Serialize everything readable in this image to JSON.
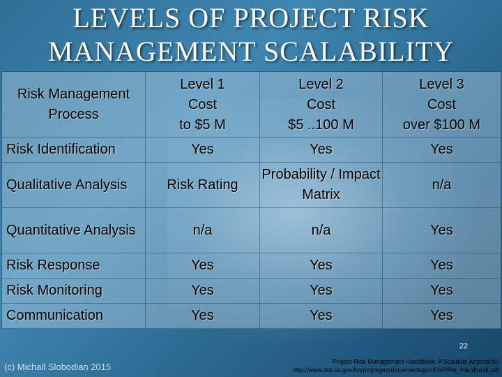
{
  "title": {
    "line1": "LEVELS OF PROJECT RISK",
    "line2": "MANAGEMENT SCALABILITY"
  },
  "table": {
    "header": {
      "first": "Risk Management Process",
      "levels": [
        {
          "name": "Level 1",
          "cost": "Cost",
          "range": "to $5 M"
        },
        {
          "name": "Level 2",
          "cost": "Cost",
          "range": "$5 ..100 M"
        },
        {
          "name": "Level 3",
          "cost": "Cost",
          "range": "over $100 M"
        }
      ]
    },
    "rows": [
      {
        "process": "Risk Identification",
        "values": [
          "Yes",
          "Yes",
          "Yes"
        ]
      },
      {
        "process": "Qualitative Analysis",
        "values": [
          "Risk Rating",
          "Probability / Impact Matrix",
          "n/a"
        ]
      },
      {
        "process": "Quantitative Analysis",
        "values": [
          "n/a",
          "n/a",
          "Yes"
        ]
      },
      {
        "process": "Risk Response",
        "values": [
          "Yes",
          "Yes",
          "Yes"
        ]
      },
      {
        "process": "Risk Monitoring",
        "values": [
          "Yes",
          "Yes",
          "Yes"
        ]
      },
      {
        "process": "Communication",
        "values": [
          "Yes",
          "Yes",
          "Yes"
        ]
      }
    ]
  },
  "footer": {
    "page_number": "22",
    "copyright": "(c) Michail Slobodian 2015",
    "source_line1": "Project Risk Management Handbook: A Scalable Approach//",
    "source_line2": "http://www.dot.ca.gov/hq/projmgmt/documents/prmhb/PRM_Handbook.pdf"
  },
  "colors": {
    "background": "#3f86b1",
    "title_text": "#ffffff",
    "table_text": "#000000"
  }
}
